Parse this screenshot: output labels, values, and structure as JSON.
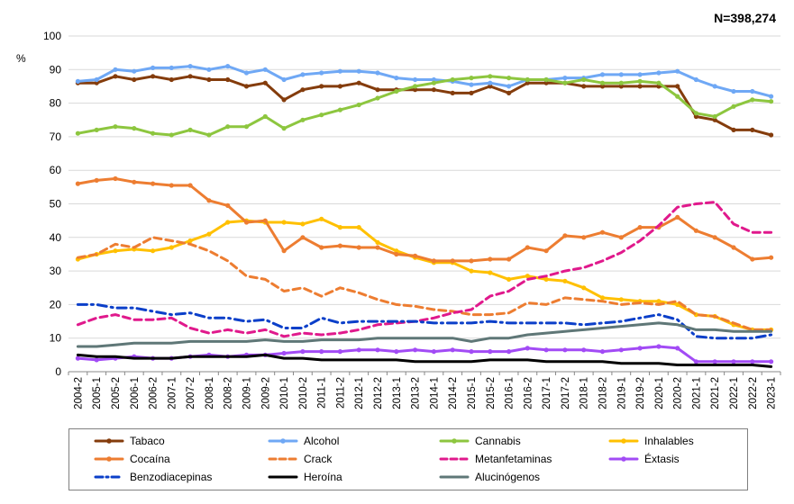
{
  "chart_data": {
    "type": "line",
    "title": "",
    "annotation": "N=398,274",
    "ylabel": "%",
    "xlabel": "",
    "ylim": [
      0,
      100
    ],
    "yticks": [
      0,
      10,
      20,
      30,
      40,
      50,
      60,
      70,
      80,
      90,
      100
    ],
    "grid": "horizontal",
    "legend": "bottom",
    "categories": [
      "2004-2",
      "2005-1",
      "2005-2",
      "2006-1",
      "2006-2",
      "2007-1",
      "2007-2",
      "2008-1",
      "2008-2",
      "2009-1",
      "2009-2",
      "2010-1",
      "2010-2",
      "2011-1",
      "2011-2",
      "2012-1",
      "2012-2",
      "2013-1",
      "2013-2",
      "2014-1",
      "2014-2",
      "2015-1",
      "2015-2",
      "2016-1",
      "2016-2",
      "2017-1",
      "2017-2",
      "2018-1",
      "2018-2",
      "2019-1",
      "2019-2",
      "2020-1",
      "2020-2",
      "2021-1",
      "2021-2",
      "2022-1",
      "2022-2",
      "2023-1"
    ],
    "series": [
      {
        "name": "Tabaco",
        "color": "#843C0C",
        "dash": "solid",
        "width": 3,
        "markers": true,
        "values": [
          86,
          86,
          88,
          87,
          88,
          87,
          88,
          87,
          87,
          85,
          86,
          81,
          84,
          85,
          85,
          86,
          84,
          84,
          84,
          84,
          83,
          83,
          85,
          83,
          86,
          86,
          86,
          85,
          85,
          85,
          85,
          85,
          85,
          76,
          75,
          72,
          72,
          70.5
        ]
      },
      {
        "name": "Alcohol",
        "color": "#6FA8F5",
        "dash": "solid",
        "width": 3,
        "markers": true,
        "values": [
          86.5,
          87,
          90,
          89.5,
          90.5,
          90.5,
          91,
          90,
          91,
          89,
          90,
          87,
          88.5,
          89,
          89.5,
          89.5,
          89,
          87.5,
          87,
          87,
          86.5,
          85.5,
          86,
          85,
          87,
          87,
          87.5,
          87.5,
          88.5,
          88.5,
          88.5,
          89,
          89.5,
          87,
          85,
          83.5,
          83.5,
          82
        ]
      },
      {
        "name": "Cannabis",
        "color": "#8DC63F",
        "dash": "solid",
        "width": 3,
        "markers": true,
        "values": [
          71,
          72,
          73,
          72.5,
          71,
          70.5,
          72,
          70.5,
          73,
          73,
          76,
          72.5,
          75,
          76.5,
          78,
          79.5,
          81.5,
          83.5,
          85,
          86,
          87,
          87.5,
          88,
          87.5,
          87,
          87,
          86,
          87,
          86,
          86,
          86.5,
          86,
          82,
          77,
          76,
          79,
          81,
          80.5
        ]
      },
      {
        "name": "Inhalables",
        "color": "#FFC000",
        "dash": "solid",
        "width": 3,
        "markers": true,
        "values": [
          33.5,
          35,
          36,
          36.5,
          36,
          37,
          39,
          41,
          44.5,
          45,
          44.5,
          44.5,
          44,
          45.5,
          43,
          43,
          38.5,
          36,
          34,
          32.5,
          32.5,
          30,
          29.5,
          27.5,
          28.5,
          27.5,
          27,
          25,
          22,
          21.5,
          21,
          21,
          20,
          17,
          16.5,
          14,
          12.5,
          12.5
        ]
      },
      {
        "name": "Cocaína",
        "color": "#ED7D31",
        "dash": "solid",
        "width": 3,
        "markers": true,
        "values": [
          56,
          57,
          57.5,
          56.5,
          56,
          55.5,
          55.5,
          51,
          49.5,
          44.5,
          45,
          36,
          40,
          37,
          37.5,
          37,
          37,
          35,
          34.5,
          33,
          33,
          33,
          33.5,
          33.5,
          37,
          36,
          40.5,
          40,
          41.5,
          40,
          43,
          43,
          46,
          42,
          40,
          37,
          33.5,
          34
        ]
      },
      {
        "name": "Crack",
        "color": "#ED7D31",
        "dash": "dashed",
        "width": 3,
        "markers": false,
        "values": [
          34,
          35,
          38,
          37,
          40,
          39,
          38,
          36,
          33,
          28.5,
          27.5,
          24,
          25,
          22.5,
          25,
          23.5,
          21.5,
          20,
          19.5,
          18.5,
          18,
          17,
          17,
          17.5,
          20.5,
          20,
          22,
          21.5,
          21,
          20,
          20.5,
          20,
          21,
          17,
          16.5,
          14.5,
          12.5,
          12.5
        ]
      },
      {
        "name": "Metanfetaminas",
        "color": "#E0198C",
        "dash": "dashed",
        "width": 3,
        "markers": false,
        "values": [
          14,
          16,
          17,
          15.5,
          15.5,
          16,
          13,
          11.5,
          12.5,
          11.5,
          12.5,
          10.5,
          11.5,
          11,
          11.5,
          12.5,
          14,
          14.5,
          15,
          16,
          17.5,
          18.5,
          22.5,
          24,
          27.5,
          28.5,
          30,
          31,
          33,
          35.5,
          39,
          43.5,
          49,
          50,
          50.5,
          44,
          41.5,
          41.5
        ]
      },
      {
        "name": "Éxtasis",
        "color": "#A24BF5",
        "dash": "solid",
        "width": 3,
        "markers": true,
        "values": [
          4,
          3.5,
          4,
          4.5,
          4,
          4,
          4.5,
          5,
          4.5,
          5,
          5,
          5.5,
          6,
          6,
          6,
          6.5,
          6.5,
          6,
          6.5,
          6,
          6.5,
          6,
          6,
          6,
          7,
          6.5,
          6.5,
          6.5,
          6,
          6.5,
          7,
          7.5,
          7,
          3,
          3,
          3,
          3,
          3
        ]
      },
      {
        "name": "Benzodiacepinas",
        "color": "#0B3FC9",
        "dash": "dashdot",
        "width": 3,
        "markers": false,
        "values": [
          20,
          20,
          19,
          19,
          18,
          17,
          17.5,
          16,
          16,
          15,
          15.5,
          13,
          13,
          16,
          14.5,
          15,
          15,
          15,
          15,
          14.5,
          14.5,
          14.5,
          15,
          14.5,
          14.5,
          14.5,
          14.5,
          14,
          14.5,
          15,
          16,
          17,
          15.5,
          10.5,
          10,
          10,
          10,
          11
        ]
      },
      {
        "name": "Heroína",
        "color": "#000000",
        "dash": "solid",
        "width": 3,
        "markers": false,
        "values": [
          5,
          4.5,
          4.5,
          4,
          4,
          4,
          4.5,
          4.5,
          4.5,
          4.5,
          5,
          4,
          4,
          3.5,
          3.5,
          3.5,
          3.5,
          3.5,
          3,
          3,
          3,
          3,
          3.5,
          3.5,
          3.5,
          3,
          3,
          3,
          3,
          2.5,
          2.5,
          2.5,
          2,
          2,
          2,
          2,
          2,
          1.5
        ]
      },
      {
        "name": "Alucinógenos",
        "color": "#5F7777",
        "dash": "solid",
        "width": 3,
        "markers": false,
        "values": [
          7.5,
          7.5,
          8,
          8.5,
          8.5,
          8.5,
          9,
          9,
          9,
          9,
          9.5,
          9,
          9,
          9.5,
          9.5,
          9.5,
          10,
          10,
          10,
          10,
          10,
          9,
          10,
          10,
          11,
          11.5,
          12,
          12.5,
          13,
          13.5,
          14,
          14.5,
          14,
          12.5,
          12.5,
          12,
          12,
          12
        ]
      }
    ]
  }
}
